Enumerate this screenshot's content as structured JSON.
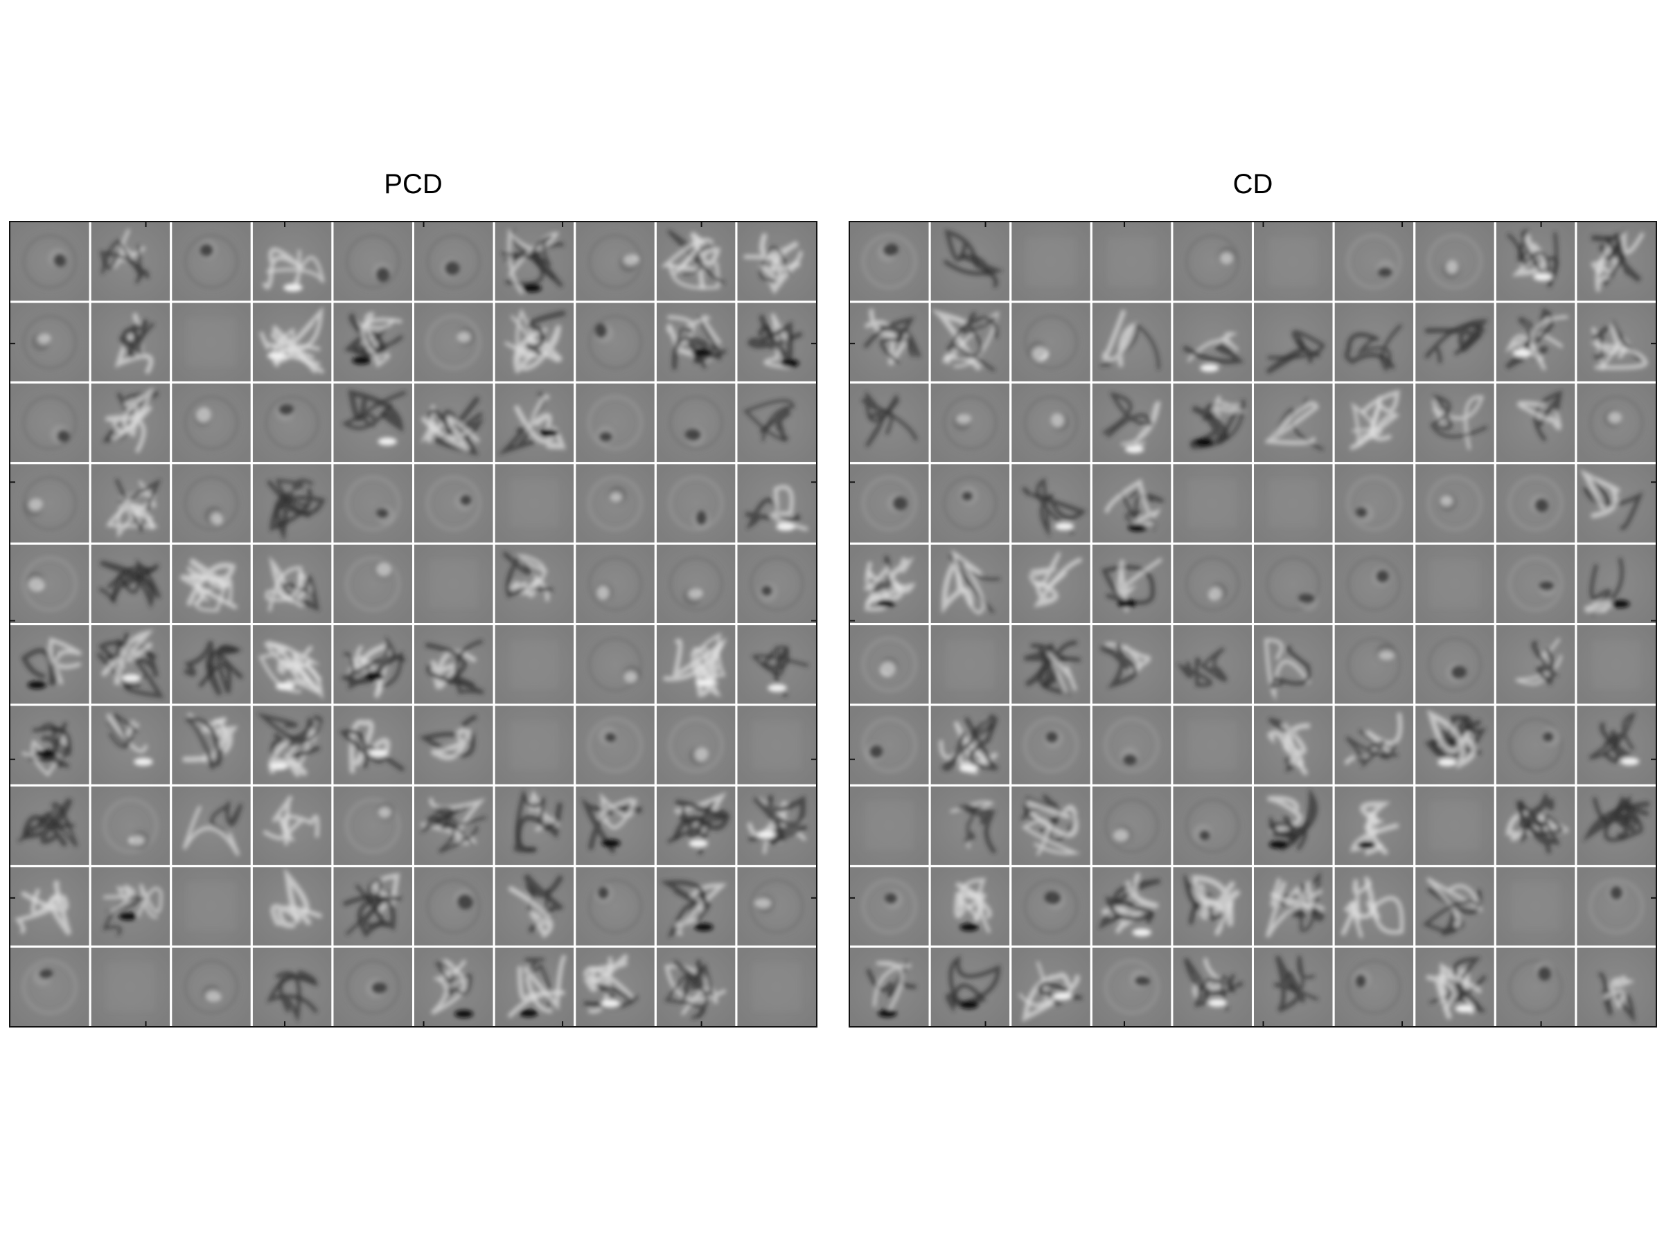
{
  "panels": [
    {
      "id": "pcd",
      "title": "PCD",
      "rows": 10,
      "cols": 10,
      "tile_background": "#868686",
      "seed": 17
    },
    {
      "id": "cd",
      "title": "CD",
      "rows": 10,
      "cols": 10,
      "tile_background": "#868686",
      "seed": 91
    }
  ]
}
